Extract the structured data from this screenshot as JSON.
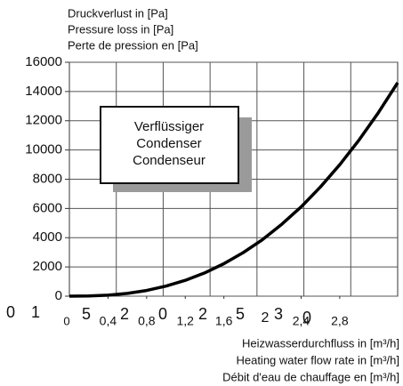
{
  "chart_data": {
    "type": "line",
    "title_lines": [
      "Druckverlust in [Pa]",
      "Pressure loss in [Pa]",
      "Perte de pression en [Pa]"
    ],
    "x_label_lines": [
      "Heizwasserdurchfluss in [m³/h]",
      "Heating water flow rate in [m³/h]",
      "Débit d'eau de chauffage en [m³/h]"
    ],
    "annotation_lines": [
      "Verflüssiger",
      "Condenser",
      "Condenseur"
    ],
    "x": [
      0,
      0.2,
      0.4,
      0.6,
      0.8,
      1.0,
      1.2,
      1.4,
      1.6,
      1.8,
      2.0,
      2.2,
      2.4,
      2.6,
      2.8,
      3.0,
      3.2,
      3.4
    ],
    "series": [
      {
        "color": "#000000",
        "values": [
          0,
          12,
          69,
          191,
          392,
          685,
          1080,
          1590,
          2220,
          2980,
          3870,
          4920,
          6110,
          7470,
          8990,
          10680,
          12550,
          14600
        ]
      }
    ],
    "xlim": [
      0,
      3.4
    ],
    "xticks": [
      {
        "value": 0.4,
        "label": "0,4"
      },
      {
        "value": 0.8,
        "label": "0,8"
      },
      {
        "value": 1.2,
        "label": "1,2"
      },
      {
        "value": 1.6,
        "label": "1,6"
      },
      {
        "value": 2.4,
        "label": "2,4"
      },
      {
        "value": 2.8,
        "label": "2,8"
      }
    ],
    "x_axis_fragments": [
      "0",
      "1",
      "0",
      "5",
      "2",
      "0",
      "2",
      "5",
      "2",
      "3",
      "0"
    ],
    "ylim": [
      0,
      16000
    ],
    "yticks": [
      0,
      2000,
      4000,
      6000,
      8000,
      10000,
      12000,
      14000,
      16000
    ],
    "grid": true
  }
}
